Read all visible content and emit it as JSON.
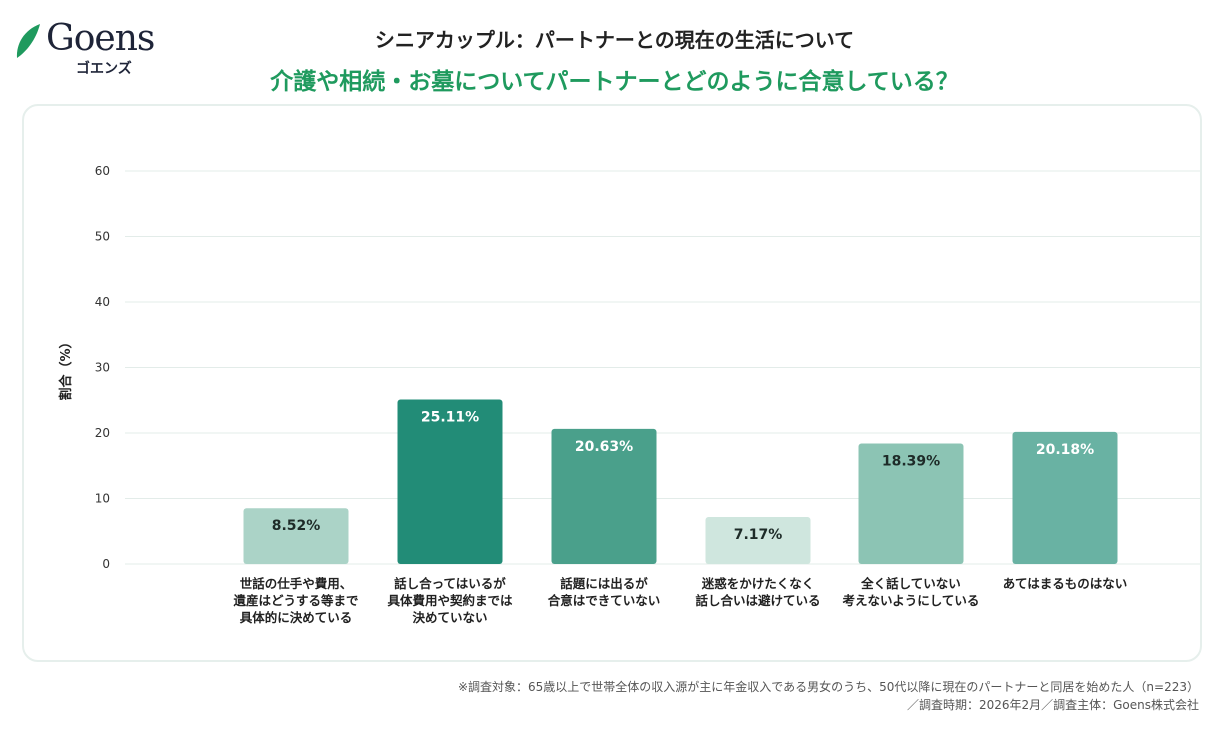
{
  "logo": {
    "word": "Goens",
    "kana": "ゴエンズ"
  },
  "header": {
    "title": "シニアカップル：パートナーとの現在の生活について",
    "subtitle": "介護や相続・お墓についてパートナーとどのように合意している？"
  },
  "chart_data": {
    "type": "bar",
    "ylabel": "割合（%）",
    "ylim": [
      0,
      60
    ],
    "yticks": [
      0,
      10,
      20,
      30,
      40,
      50,
      60
    ],
    "grid": true,
    "categories": [
      [
        "世話の仕手や費用、",
        "遺産はどうする等まで",
        "具体的に決めている"
      ],
      [
        "話し合ってはいるが",
        "具体費用や契約までは",
        "決めていない"
      ],
      [
        "話題には出るが",
        "合意はできていない"
      ],
      [
        "迷惑をかけたくなく",
        "話し合いは避けている"
      ],
      [
        "全く話していない",
        "考えないようにしている"
      ],
      [
        "あてはまるものはない"
      ]
    ],
    "values": [
      8.52,
      25.11,
      20.63,
      7.17,
      18.39,
      20.18
    ],
    "data_labels": [
      "8.52%",
      "25.11%",
      "20.63%",
      "7.17%",
      "18.39%",
      "20.18%"
    ],
    "colors": [
      "#abd3c7",
      "#228c77",
      "#4aa08b",
      "#cfe6de",
      "#8cc4b4",
      "#69b2a3"
    ],
    "label_colors": [
      "#1e2b28",
      "#ffffff",
      "#ffffff",
      "#1e2b28",
      "#1e2b28",
      "#ffffff"
    ]
  },
  "footer": {
    "line1": "※調査対象：65歳以上で世帯全体の収入源が主に年金収入である男女のうち、50代以降に現在のパートナーと同居を始めた人（n=223）",
    "line2": "／調査時期：2026年2月／調査主体：Goens株式会社"
  }
}
